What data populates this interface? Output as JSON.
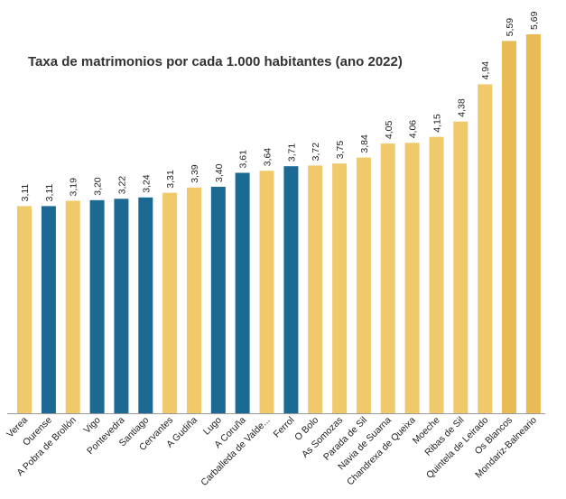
{
  "chart_data": {
    "type": "bar",
    "title": "Taxa de matrimonios por cada 1.000 habitantes (ano 2022)",
    "categories": [
      "Verea",
      "Ourense",
      "A Pobra de Brollón",
      "Vigo",
      "Pontevedra",
      "Santiago",
      "Cervantes",
      "A Gudiña",
      "Lugo",
      "A Coruña",
      "Carballeda de Valde...",
      "Ferrol",
      "O Bolo",
      "As Somozas",
      "Parada de Sil",
      "Navia de Suarna",
      "Chandrexa de Queixa",
      "Moeche",
      "Ribas de Sil",
      "Quintela de Leirado",
      "Os Blancos",
      "Mondariz-Balneario"
    ],
    "values": [
      3.11,
      3.11,
      3.19,
      3.2,
      3.22,
      3.24,
      3.31,
      3.39,
      3.4,
      3.61,
      3.64,
      3.71,
      3.72,
      3.75,
      3.84,
      4.05,
      4.06,
      4.15,
      4.38,
      4.94,
      5.59,
      5.69
    ],
    "value_labels": [
      "3,11",
      "3,11",
      "3,19",
      "3,20",
      "3,22",
      "3,24",
      "3,31",
      "3,39",
      "3,40",
      "3,61",
      "3,64",
      "3,71",
      "3,72",
      "3,75",
      "3,84",
      "4,05",
      "4,06",
      "4,15",
      "4,38",
      "4,94",
      "5,59",
      "5,69"
    ],
    "bar_colors": [
      "#f0c96a",
      "#1c6a94",
      "#f0c96a",
      "#1c6a94",
      "#1c6a94",
      "#1c6a94",
      "#f0c96a",
      "#f0c96a",
      "#1c6a94",
      "#1c6a94",
      "#f0c96a",
      "#1c6a94",
      "#f0c96a",
      "#f0c96a",
      "#f0c96a",
      "#f0c96a",
      "#f0c96a",
      "#f0c96a",
      "#f0c96a",
      "#f0c96a",
      "#e8bb55",
      "#e8bb55"
    ],
    "ylim": [
      0,
      5.69
    ],
    "grid": false,
    "legend": "none",
    "colors": {
      "city": "#1c6a94",
      "municipality": "#f0c96a",
      "top": "#e8bb55",
      "axis": "#999999",
      "text": "#222222"
    }
  }
}
